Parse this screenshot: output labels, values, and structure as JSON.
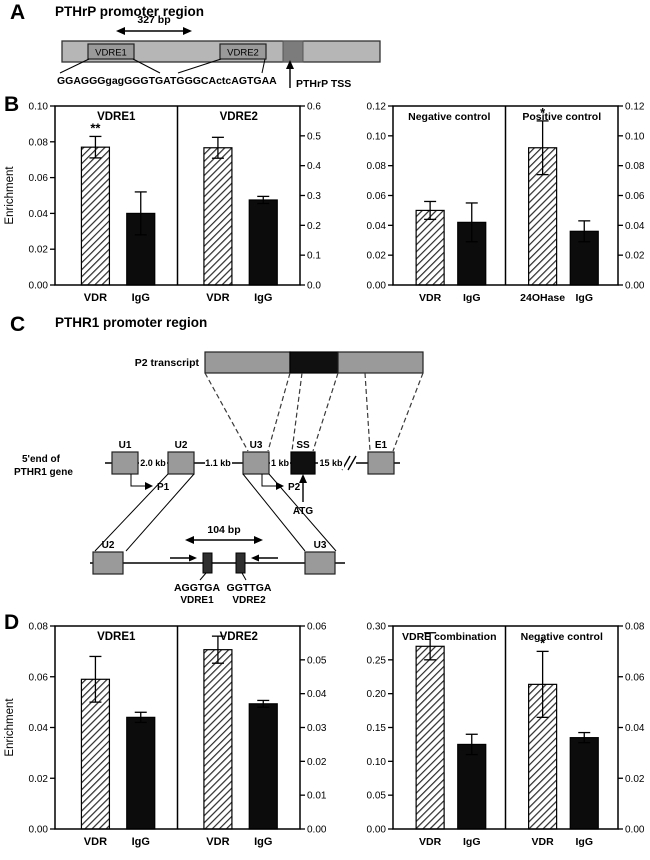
{
  "figure": {
    "panels": {
      "a": {
        "label": "A",
        "title": "PTHrP promoter region",
        "bp_label": "327 bp",
        "vdre1": "VDRE1",
        "vdre2": "VDRE2",
        "seq1": "GGAGGGgagGGGTGA",
        "seq2": "TGGGCActcAGTGAA",
        "tss": "PTHrP TSS"
      },
      "b": {
        "label": "B"
      },
      "c": {
        "label": "C",
        "title": "PTHR1 promoter region",
        "transcript_label": "P2 transcript",
        "gene_label_1": "5'end of",
        "gene_label_2": "PTHR1 gene",
        "exon_u1": "U1",
        "exon_u2": "U2",
        "exon_u3": "U3",
        "exon_ss": "SS",
        "exon_e1": "E1",
        "dist_1": "2.0 kb",
        "dist_2": "1.1 kb",
        "dist_3": "1 kb",
        "dist_4": "15 kb",
        "p1": "P1",
        "p2": "P2",
        "atg": "ATG",
        "detail_bp": "104 bp",
        "detail_u2": "U2",
        "detail_u3": "U3",
        "vdre1_seq": "AGGTGA",
        "vdre1_name": "VDRE1",
        "vdre2_seq": "GGTTGA",
        "vdre2_name": "VDRE2"
      },
      "d": {
        "label": "D"
      }
    },
    "colors": {
      "bar_solid": "#0c0c0c",
      "box_gray": "#9a9a9a",
      "promoter_bar_gray": "#b6b6b6",
      "dark_segment_gray": "#7c7c7c"
    }
  },
  "chart_data": [
    {
      "dom_id": "chart-b-left",
      "type": "bar",
      "panel": "B",
      "ylabel": "Enrichment",
      "left_axis": {
        "max": 0.1,
        "ticks": [
          "0.00",
          "0.02",
          "0.04",
          "0.06",
          "0.08",
          "0.10"
        ]
      },
      "right_axis": {
        "max": 0.6,
        "ticks": [
          "0.0",
          "0.1",
          "0.2",
          "0.3",
          "0.4",
          "0.5",
          "0.6"
        ]
      },
      "subpanels": [
        {
          "title": "VDRE1",
          "axis": "left",
          "bars": [
            {
              "label": "VDR",
              "value": 0.077,
              "error": 0.006,
              "style": "hatched",
              "sig": "**"
            },
            {
              "label": "IgG",
              "value": 0.04,
              "error": 0.012,
              "style": "solid"
            }
          ]
        },
        {
          "title": "VDRE2",
          "axis": "right",
          "bars": [
            {
              "label": "VDR",
              "value": 0.46,
              "error": 0.035,
              "style": "hatched"
            },
            {
              "label": "IgG",
              "value": 0.285,
              "error": 0.012,
              "style": "solid"
            }
          ]
        }
      ]
    },
    {
      "dom_id": "chart-b-right",
      "type": "bar",
      "panel": "B",
      "ylabel": "",
      "left_axis": {
        "max": 0.12,
        "ticks": [
          "0.00",
          "0.02",
          "0.04",
          "0.06",
          "0.08",
          "0.10",
          "0.12"
        ]
      },
      "right_axis": {
        "max": 0.12,
        "ticks": [
          "0.00",
          "0.02",
          "0.04",
          "0.06",
          "0.08",
          "0.10",
          "0.12"
        ]
      },
      "subpanels": [
        {
          "title": "Negative control",
          "axis": "left",
          "bars": [
            {
              "label": "VDR",
              "value": 0.05,
              "error": 0.006,
              "style": "hatched"
            },
            {
              "label": "IgG",
              "value": 0.042,
              "error": 0.013,
              "style": "solid"
            }
          ]
        },
        {
          "title": "Positive control",
          "axis": "left",
          "bars": [
            {
              "label": "24OHase",
              "value": 0.092,
              "error": 0.018,
              "style": "hatched",
              "sig": "*"
            },
            {
              "label": "IgG",
              "value": 0.036,
              "error": 0.007,
              "style": "solid"
            }
          ]
        }
      ]
    },
    {
      "dom_id": "chart-d-left",
      "type": "bar",
      "panel": "D",
      "ylabel": "Enrichment",
      "left_axis": {
        "max": 0.08,
        "ticks": [
          "0.00",
          "0.02",
          "0.04",
          "0.06",
          "0.08"
        ]
      },
      "right_axis": {
        "max": 0.06,
        "ticks": [
          "0.00",
          "0.01",
          "0.02",
          "0.03",
          "0.04",
          "0.05",
          "0.06"
        ]
      },
      "subpanels": [
        {
          "title": "VDRE1",
          "axis": "left",
          "bars": [
            {
              "label": "VDR",
              "value": 0.059,
              "error": 0.009,
              "style": "hatched"
            },
            {
              "label": "IgG",
              "value": 0.044,
              "error": 0.002,
              "style": "solid"
            }
          ]
        },
        {
          "title": "VDRE2",
          "axis": "right",
          "bars": [
            {
              "label": "VDR",
              "value": 0.053,
              "error": 0.004,
              "style": "hatched"
            },
            {
              "label": "IgG",
              "value": 0.037,
              "error": 0.001,
              "style": "solid"
            }
          ]
        }
      ]
    },
    {
      "dom_id": "chart-d-right",
      "type": "bar",
      "panel": "D",
      "ylabel": "",
      "left_axis": {
        "max": 0.3,
        "ticks": [
          "0.00",
          "0.05",
          "0.10",
          "0.15",
          "0.20",
          "0.25",
          "0.30"
        ]
      },
      "right_axis": {
        "max": 0.08,
        "ticks": [
          "0.00",
          "0.02",
          "0.04",
          "0.06",
          "0.08"
        ]
      },
      "subpanels": [
        {
          "title": "VDRE combination",
          "axis": "left",
          "bars": [
            {
              "label": "VDR",
              "value": 0.27,
              "error": 0.02,
              "style": "hatched"
            },
            {
              "label": "IgG",
              "value": 0.125,
              "error": 0.015,
              "style": "solid"
            }
          ]
        },
        {
          "title": "Negative control",
          "axis": "right",
          "bars": [
            {
              "label": "VDR",
              "value": 0.057,
              "error": 0.013,
              "style": "hatched",
              "sig": "*"
            },
            {
              "label": "IgG",
              "value": 0.036,
              "error": 0.002,
              "style": "solid"
            }
          ]
        }
      ]
    }
  ]
}
